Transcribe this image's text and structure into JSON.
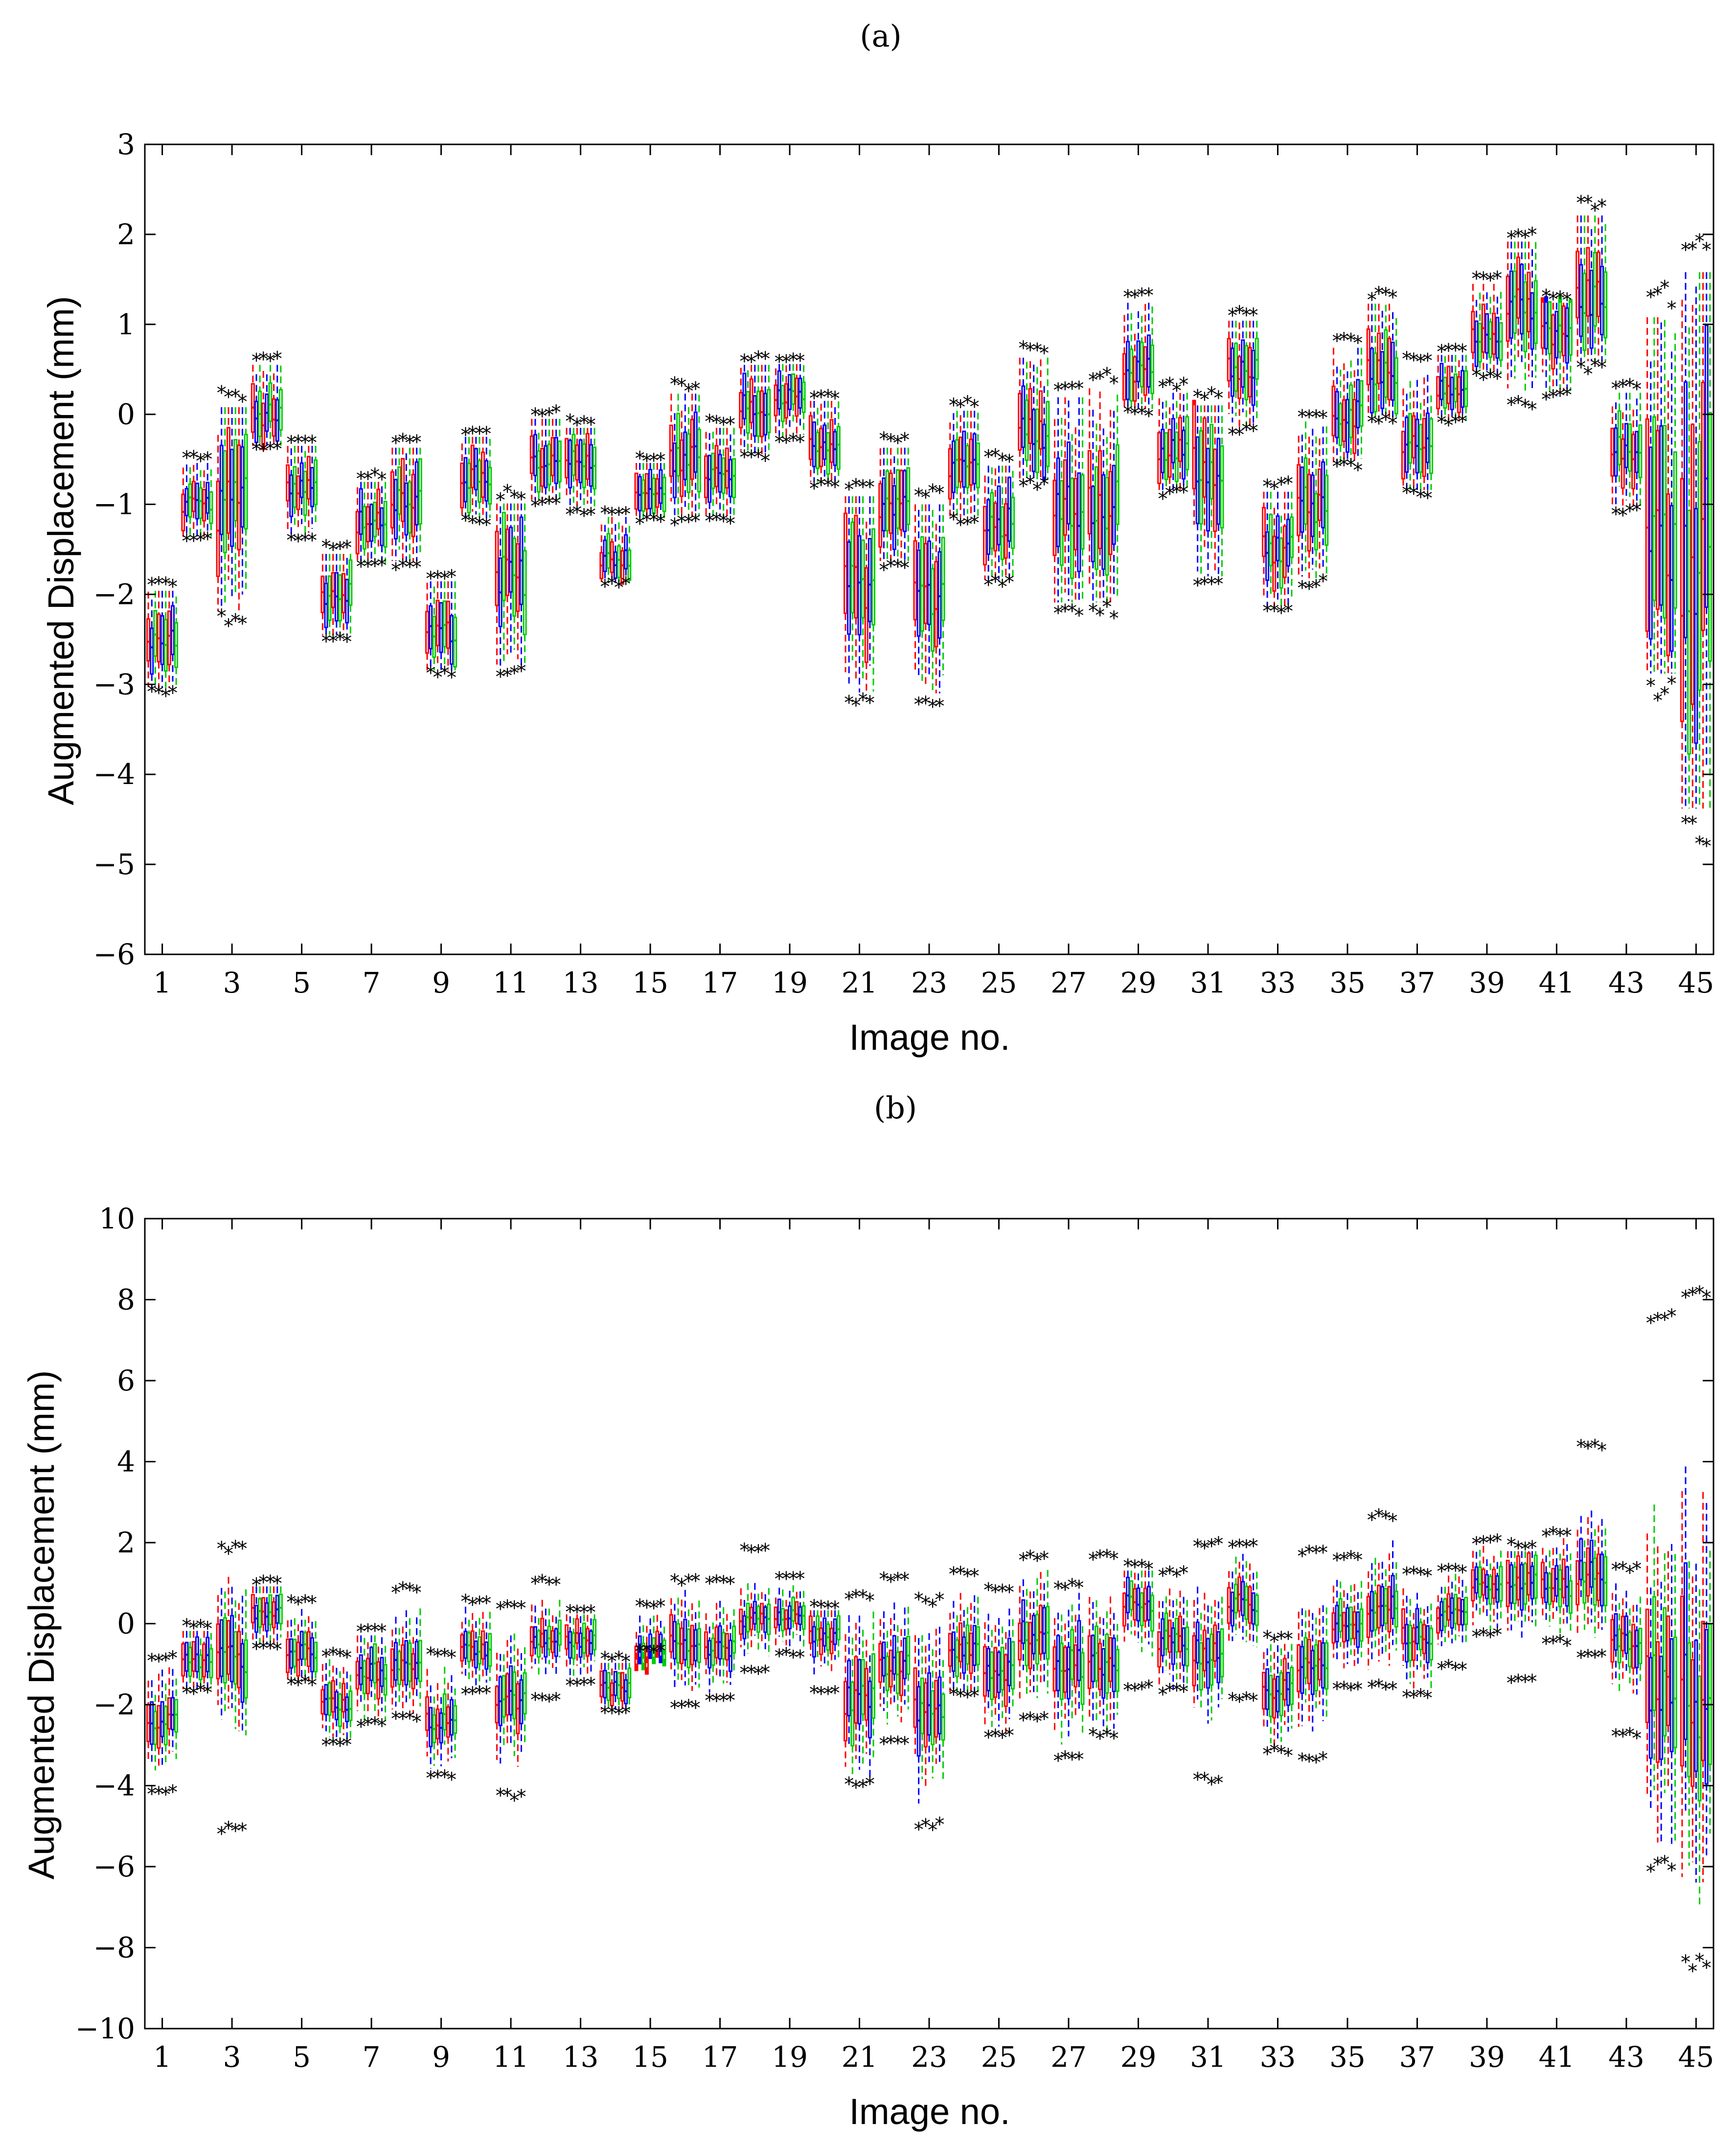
{
  "chart_data": [
    {
      "type": "box",
      "panel_label": "(a)",
      "xlabel": "Image no.",
      "ylabel": "Augmented Displacement (mm)",
      "ylim": [
        -6,
        3
      ],
      "yticks": [
        3,
        2,
        1,
        0,
        -1,
        -2,
        -3,
        -4,
        -5,
        -6
      ],
      "yticklabels": [
        "3",
        "2",
        "1",
        "0",
        "−1",
        "−2",
        "−3",
        "−4",
        "−5",
        "−6"
      ],
      "xlim": [
        0.5,
        45.5
      ],
      "xticks": [
        1,
        3,
        5,
        7,
        9,
        11,
        13,
        15,
        17,
        19,
        21,
        23,
        25,
        27,
        29,
        31,
        33,
        35,
        37,
        39,
        41,
        43,
        45
      ],
      "xticklabels": [
        "1",
        "3",
        "5",
        "7",
        "9",
        "11",
        "13",
        "15",
        "17",
        "19",
        "21",
        "23",
        "25",
        "27",
        "29",
        "31",
        "33",
        "35",
        "37",
        "39",
        "41",
        "43",
        "45"
      ],
      "box_colors": [
        "#ff0000",
        "#0000ff",
        "#00cc00"
      ],
      "outlier_marker": "*",
      "images": [
        1,
        2,
        3,
        4,
        5,
        6,
        7,
        8,
        9,
        10,
        11,
        12,
        13,
        14,
        15,
        16,
        17,
        18,
        19,
        20,
        21,
        22,
        23,
        24,
        25,
        26,
        27,
        28,
        29,
        30,
        31,
        32,
        33,
        34,
        35,
        36,
        37,
        38,
        39,
        40,
        41,
        42,
        43,
        44,
        45
      ],
      "median": [
        -2.5,
        -1.0,
        -1.0,
        0.0,
        -0.8,
        -2.0,
        -1.2,
        -1.0,
        -2.4,
        -0.7,
        -1.8,
        -0.5,
        -0.5,
        -1.6,
        -0.8,
        -0.5,
        -0.6,
        0.1,
        0.2,
        -0.3,
        -1.9,
        -1.0,
        -2.0,
        -0.6,
        -1.2,
        -0.2,
        -1.0,
        -1.0,
        0.5,
        -0.4,
        -0.6,
        0.5,
        -1.5,
        -1.0,
        0.0,
        0.5,
        -0.3,
        0.3,
        0.9,
        1.2,
        0.9,
        1.3,
        -0.4,
        -1.5,
        -1.5
      ],
      "spread": [
        0.6,
        0.4,
        1.2,
        0.5,
        0.5,
        0.5,
        0.5,
        0.7,
        0.55,
        0.5,
        0.9,
        0.5,
        0.5,
        0.4,
        0.4,
        0.7,
        0.5,
        0.5,
        0.4,
        0.5,
        1.1,
        0.7,
        1.0,
        0.6,
        0.7,
        0.7,
        1.1,
        1.1,
        0.6,
        0.6,
        1.0,
        0.6,
        0.6,
        0.8,
        0.6,
        0.7,
        0.6,
        0.4,
        0.5,
        0.8,
        0.6,
        0.9,
        0.6,
        2.2,
        3.2
      ],
      "outlier_low": [
        -3.1,
        -1.4,
        -2.3,
        -0.4,
        -1.4,
        -2.5,
        -1.7,
        -1.7,
        -2.9,
        -1.2,
        -2.9,
        -1.0,
        -1.1,
        -1.9,
        -1.2,
        -1.2,
        -1.2,
        -0.5,
        -0.3,
        -0.8,
        -3.2,
        -1.7,
        -3.2,
        -1.2,
        -1.9,
        -0.8,
        -2.2,
        -2.2,
        0.0,
        -0.9,
        -1.9,
        -0.2,
        -2.2,
        -1.9,
        -0.6,
        -0.1,
        -0.9,
        -0.1,
        0.4,
        0.1,
        0.2,
        0.5,
        -1.1,
        -3.1,
        -4.7
      ],
      "outlier_high": [
        -1.9,
        -0.5,
        0.2,
        0.6,
        -0.3,
        -1.5,
        -0.7,
        -0.3,
        -1.8,
        -0.2,
        -0.9,
        0.0,
        -0.1,
        -1.1,
        -0.5,
        0.3,
        -0.1,
        0.6,
        0.6,
        0.2,
        -0.8,
        -0.3,
        -0.9,
        0.1,
        -0.5,
        0.7,
        0.3,
        0.4,
        1.3,
        0.3,
        0.2,
        1.1,
        -0.8,
        0.0,
        0.8,
        1.3,
        0.6,
        0.7,
        1.5,
        2.0,
        1.3,
        2.3,
        0.3,
        1.3,
        1.9
      ]
    },
    {
      "type": "box",
      "panel_label": "(b)",
      "xlabel": "Image no.",
      "ylabel": "Augmented Displacement (mm)",
      "ylim": [
        -10,
        10
      ],
      "yticks": [
        10,
        8,
        6,
        4,
        2,
        0,
        -2,
        -4,
        -6,
        -8,
        -10
      ],
      "yticklabels": [
        "10",
        "8",
        "6",
        "4",
        "2",
        "0",
        "−2",
        "−4",
        "−6",
        "−8",
        "−10"
      ],
      "xlim": [
        0.5,
        45.5
      ],
      "xticks": [
        1,
        3,
        5,
        7,
        9,
        11,
        13,
        15,
        17,
        19,
        21,
        23,
        25,
        27,
        29,
        31,
        33,
        35,
        37,
        39,
        41,
        43,
        45
      ],
      "xticklabels": [
        "1",
        "3",
        "5",
        "7",
        "9",
        "11",
        "13",
        "15",
        "17",
        "19",
        "21",
        "23",
        "25",
        "27",
        "29",
        "31",
        "33",
        "35",
        "37",
        "39",
        "41",
        "43",
        "45"
      ],
      "box_colors": [
        "#ff0000",
        "#0000ff",
        "#00cc00"
      ],
      "outlier_marker": "*",
      "images": [
        1,
        2,
        3,
        4,
        5,
        6,
        7,
        8,
        9,
        10,
        11,
        12,
        13,
        14,
        15,
        16,
        17,
        18,
        19,
        20,
        21,
        22,
        23,
        24,
        25,
        26,
        27,
        28,
        29,
        30,
        31,
        32,
        33,
        34,
        35,
        36,
        37,
        38,
        39,
        40,
        41,
        42,
        43,
        44,
        45
      ],
      "median": [
        -2.4,
        -0.9,
        -0.8,
        0.2,
        -0.7,
        -2.0,
        -1.2,
        -1.0,
        -2.4,
        -0.6,
        -1.9,
        -0.4,
        -0.4,
        -1.6,
        -0.7,
        -0.5,
        -0.6,
        0.1,
        0.2,
        -0.3,
        -1.9,
        -1.0,
        -2.0,
        -0.6,
        -1.2,
        -0.2,
        -1.0,
        -1.0,
        0.5,
        -0.4,
        -0.7,
        0.5,
        -1.6,
        -1.0,
        0.0,
        0.5,
        -0.3,
        0.3,
        0.9,
        1.1,
        0.9,
        1.3,
        -0.4,
        -1.5,
        -1.8
      ],
      "spread": [
        1.0,
        0.8,
        1.6,
        0.8,
        0.8,
        0.8,
        0.9,
        1.0,
        0.9,
        0.8,
        1.2,
        0.7,
        0.7,
        0.7,
        0.7,
        1.0,
        0.8,
        0.7,
        0.6,
        0.7,
        1.6,
        1.1,
        1.6,
        1.0,
        1.2,
        1.2,
        1.4,
        1.4,
        0.9,
        1.0,
        1.2,
        0.9,
        1.0,
        1.2,
        0.9,
        1.1,
        0.9,
        0.7,
        0.8,
        1.1,
        0.9,
        1.3,
        1.0,
        3.0,
        4.2
      ],
      "outlier_low": [
        -4.2,
        -1.7,
        -5.1,
        -0.6,
        -1.5,
        -3.0,
        -2.5,
        -2.4,
        -3.8,
        -1.7,
        -4.3,
        -1.9,
        -1.5,
        -2.2,
        -0.7,
        -2.1,
        -1.9,
        -1.2,
        -0.8,
        -1.7,
        -4.0,
        -3.0,
        -5.0,
        -1.8,
        -2.8,
        -2.4,
        -3.3,
        -2.8,
        -1.6,
        -1.7,
        -3.9,
        -1.9,
        -3.2,
        -3.4,
        -1.6,
        -1.6,
        -1.8,
        -1.1,
        -0.3,
        -1.4,
        -0.5,
        -0.8,
        -2.8,
        -6.0,
        -8.4
      ],
      "outlier_high": [
        -0.9,
        -0.1,
        1.8,
        1.0,
        0.5,
        -0.8,
        -0.2,
        0.8,
        -0.8,
        0.5,
        0.4,
        1.0,
        0.3,
        -0.9,
        0.4,
        1.0,
        1.0,
        1.8,
        1.1,
        0.4,
        0.6,
        1.1,
        0.5,
        1.2,
        0.8,
        1.6,
        0.9,
        1.6,
        1.4,
        1.2,
        1.9,
        1.9,
        -0.4,
        1.7,
        1.6,
        2.6,
        1.2,
        1.3,
        2.0,
        1.9,
        2.2,
        4.3,
        1.3,
        7.5,
        8.0
      ]
    }
  ]
}
